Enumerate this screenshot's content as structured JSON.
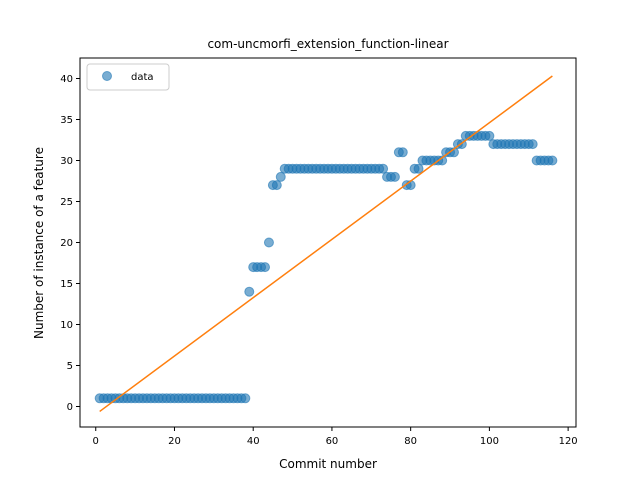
{
  "chart_data": {
    "type": "scatter",
    "title": "com-uncmorfi_extension_function-linear",
    "xlabel": "Commit number",
    "ylabel": "Number of instance of a feature",
    "xlim": [
      -4,
      122
    ],
    "ylim": [
      -2.5,
      42.5
    ],
    "xticks": [
      0,
      20,
      40,
      60,
      80,
      100,
      120
    ],
    "yticks": [
      0,
      5,
      10,
      15,
      20,
      25,
      30,
      35,
      40
    ],
    "legend": {
      "placement": "top-left",
      "entries": [
        "data"
      ]
    },
    "colors": {
      "data": "#1f77b4",
      "fit": "#ff7f0e"
    },
    "series": [
      {
        "name": "data",
        "kind": "points",
        "x": [
          1,
          2,
          3,
          4,
          5,
          6,
          7,
          8,
          9,
          10,
          11,
          12,
          13,
          14,
          15,
          16,
          17,
          18,
          19,
          20,
          21,
          22,
          23,
          24,
          25,
          26,
          27,
          28,
          29,
          30,
          31,
          32,
          33,
          34,
          35,
          36,
          37,
          38,
          39,
          40,
          41,
          42,
          43,
          44,
          45,
          46,
          47,
          48,
          49,
          50,
          51,
          52,
          53,
          54,
          55,
          56,
          57,
          58,
          59,
          60,
          61,
          62,
          63,
          64,
          65,
          66,
          67,
          68,
          69,
          70,
          71,
          72,
          73,
          74,
          75,
          76,
          77,
          78,
          79,
          80,
          81,
          82,
          83,
          84,
          85,
          86,
          87,
          88,
          89,
          90,
          91,
          92,
          93,
          94,
          95,
          96,
          97,
          98,
          99,
          100,
          101,
          102,
          103,
          104,
          105,
          106,
          107,
          108,
          109,
          110,
          111,
          112,
          113,
          114,
          115,
          116
        ],
        "y": [
          1,
          1,
          1,
          1,
          1,
          1,
          1,
          1,
          1,
          1,
          1,
          1,
          1,
          1,
          1,
          1,
          1,
          1,
          1,
          1,
          1,
          1,
          1,
          1,
          1,
          1,
          1,
          1,
          1,
          1,
          1,
          1,
          1,
          1,
          1,
          1,
          1,
          1,
          14,
          17,
          17,
          17,
          17,
          20,
          27,
          27,
          28,
          29,
          29,
          29,
          29,
          29,
          29,
          29,
          29,
          29,
          29,
          29,
          29,
          29,
          29,
          29,
          29,
          29,
          29,
          29,
          29,
          29,
          29,
          29,
          29,
          29,
          29,
          28,
          28,
          28,
          31,
          31,
          27,
          27,
          29,
          29,
          30,
          30,
          30,
          30,
          30,
          30,
          31,
          31,
          31,
          32,
          32,
          33,
          33,
          33,
          33,
          33,
          33,
          33,
          32,
          32,
          32,
          32,
          32,
          32,
          32,
          32,
          32,
          32,
          32,
          30,
          30,
          30,
          30,
          30
        ]
      },
      {
        "name": "",
        "kind": "line",
        "x": [
          1,
          116
        ],
        "y": [
          -0.6,
          40.3
        ]
      }
    ]
  }
}
